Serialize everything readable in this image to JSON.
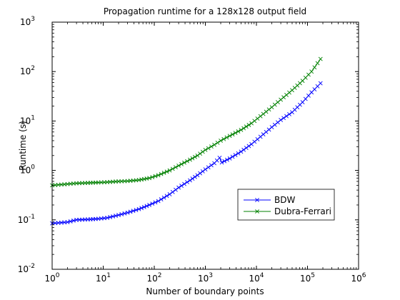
{
  "chart_data": {
    "type": "line",
    "title": "Propagation runtime for a 128x128 output field",
    "xlabel": "Number of boundary points",
    "ylabel": "Runtime (s)",
    "xscale": "log",
    "yscale": "log",
    "xlim": [
      1,
      1000000
    ],
    "ylim": [
      0.01,
      1000
    ],
    "grid": false,
    "legend_position": "lower-right",
    "x_ticks": [
      {
        "base": "10",
        "exp": "0"
      },
      {
        "base": "10",
        "exp": "1"
      },
      {
        "base": "10",
        "exp": "2"
      },
      {
        "base": "10",
        "exp": "3"
      },
      {
        "base": "10",
        "exp": "4"
      },
      {
        "base": "10",
        "exp": "5"
      },
      {
        "base": "10",
        "exp": "6"
      }
    ],
    "y_ticks": [
      {
        "base": "10",
        "exp": "-2"
      },
      {
        "base": "10",
        "exp": "-1"
      },
      {
        "base": "10",
        "exp": "0"
      },
      {
        "base": "10",
        "exp": "1"
      },
      {
        "base": "10",
        "exp": "2"
      },
      {
        "base": "10",
        "exp": "3"
      }
    ],
    "series": [
      {
        "name": "BDW",
        "color": "#0000ff",
        "marker": "x",
        "points": [
          [
            1,
            0.085
          ],
          [
            2,
            0.09
          ],
          [
            3,
            0.1
          ],
          [
            5,
            0.102
          ],
          [
            8,
            0.105
          ],
          [
            12,
            0.11
          ],
          [
            20,
            0.125
          ],
          [
            30,
            0.14
          ],
          [
            50,
            0.165
          ],
          [
            80,
            0.2
          ],
          [
            120,
            0.24
          ],
          [
            200,
            0.33
          ],
          [
            300,
            0.45
          ],
          [
            500,
            0.63
          ],
          [
            700,
            0.8
          ],
          [
            1000,
            1.05
          ],
          [
            1500,
            1.4
          ],
          [
            1900,
            1.8
          ],
          [
            2100,
            1.45
          ],
          [
            3000,
            1.75
          ],
          [
            5000,
            2.4
          ],
          [
            8000,
            3.4
          ],
          [
            12000,
            4.8
          ],
          [
            20000,
            7.5
          ],
          [
            30000,
            10.5
          ],
          [
            50000,
            15
          ],
          [
            80000,
            24
          ],
          [
            120000,
            38
          ],
          [
            180000,
            58
          ]
        ]
      },
      {
        "name": "Dubra-Ferrari",
        "color": "#008000",
        "marker": "x",
        "points": [
          [
            1,
            0.5
          ],
          [
            2,
            0.53
          ],
          [
            3,
            0.55
          ],
          [
            5,
            0.56
          ],
          [
            8,
            0.57
          ],
          [
            12,
            0.58
          ],
          [
            20,
            0.6
          ],
          [
            30,
            0.61
          ],
          [
            50,
            0.64
          ],
          [
            80,
            0.7
          ],
          [
            120,
            0.8
          ],
          [
            200,
            1.0
          ],
          [
            300,
            1.25
          ],
          [
            500,
            1.65
          ],
          [
            700,
            2.0
          ],
          [
            1000,
            2.6
          ],
          [
            1500,
            3.3
          ],
          [
            2000,
            4.0
          ],
          [
            3000,
            5.0
          ],
          [
            5000,
            6.6
          ],
          [
            8000,
            9.0
          ],
          [
            12000,
            12.5
          ],
          [
            20000,
            19
          ],
          [
            30000,
            27
          ],
          [
            50000,
            42
          ],
          [
            80000,
            65
          ],
          [
            120000,
            100
          ],
          [
            180000,
            180
          ]
        ]
      }
    ]
  }
}
